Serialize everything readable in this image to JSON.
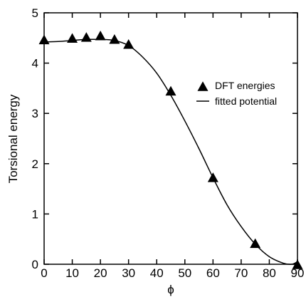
{
  "chart_data": {
    "type": "scatter",
    "xlabel": "ϕ",
    "ylabel": "Torsional energy",
    "xlim": [
      0,
      90
    ],
    "ylim": [
      0,
      5
    ],
    "xticks": [
      0,
      10,
      20,
      30,
      40,
      50,
      60,
      70,
      80,
      90
    ],
    "yticks": [
      0,
      1,
      2,
      3,
      4,
      5
    ],
    "x_tick_labels": [
      "0",
      "10",
      "20",
      "30",
      "40",
      "50",
      "60",
      "70",
      "80",
      "90"
    ],
    "y_tick_labels": [
      "0",
      "1",
      "2",
      "3",
      "4",
      "5"
    ],
    "grid": false,
    "legend_position": "right",
    "series": [
      {
        "name": "DFT energies",
        "kind": "scatter",
        "marker": "triangle",
        "color": "#000000",
        "x": [
          0,
          10,
          15,
          20,
          25,
          30,
          45,
          60,
          75,
          90
        ],
        "y": [
          4.47,
          4.5,
          4.52,
          4.55,
          4.48,
          4.38,
          3.45,
          1.73,
          0.42,
          0.0
        ]
      },
      {
        "name": "fitted potential",
        "kind": "line",
        "color": "#000000",
        "x": [
          0,
          5,
          10,
          15,
          20,
          25,
          30,
          35,
          40,
          45,
          50,
          55,
          60,
          65,
          70,
          75,
          80,
          85,
          88,
          90
        ],
        "y": [
          4.42,
          4.43,
          4.45,
          4.47,
          4.47,
          4.45,
          4.35,
          4.12,
          3.8,
          3.36,
          2.85,
          2.3,
          1.72,
          1.18,
          0.75,
          0.4,
          0.15,
          0.02,
          0.0,
          0.05
        ]
      }
    ]
  }
}
